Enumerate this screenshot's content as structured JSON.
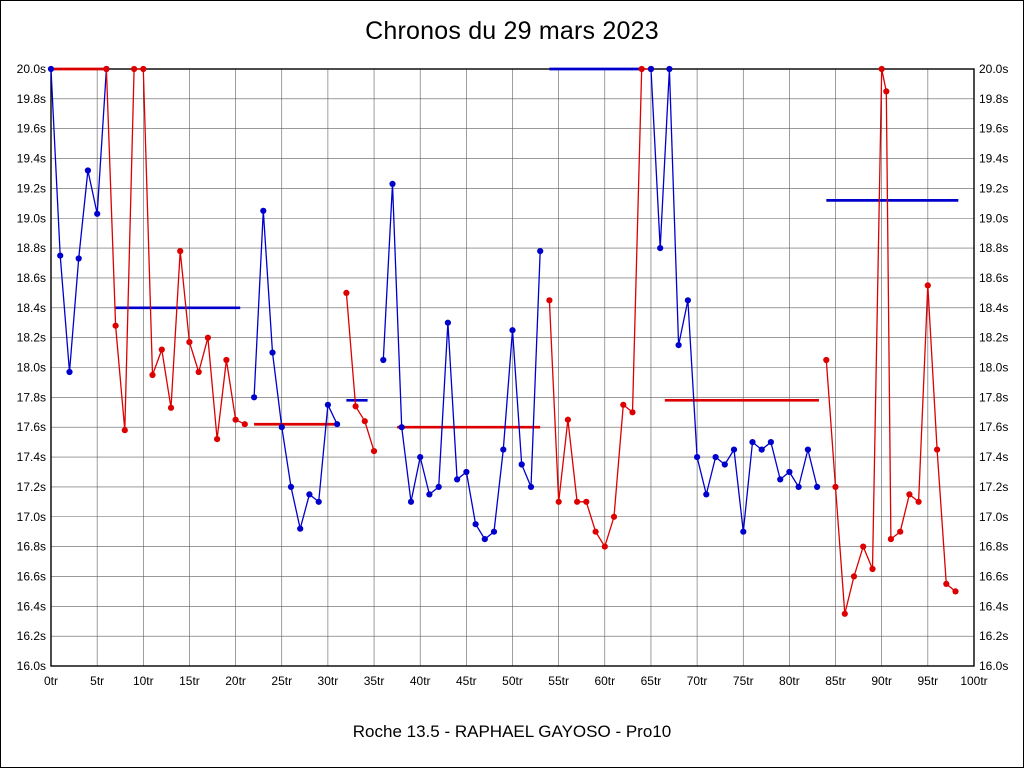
{
  "chart_data": {
    "type": "line",
    "title": "Chronos du 29 mars 2023",
    "footer": "Roche 13.5 - RAPHAEL GAYOSO - Pro10",
    "xlabel": "",
    "ylabel": "",
    "xlim": [
      0,
      100
    ],
    "ylim": [
      16.0,
      20.0
    ],
    "grid": true,
    "x_ticks": [
      "0tr",
      "5tr",
      "10tr",
      "15tr",
      "20tr",
      "25tr",
      "30tr",
      "35tr",
      "40tr",
      "45tr",
      "50tr",
      "55tr",
      "60tr",
      "65tr",
      "70tr",
      "75tr",
      "80tr",
      "85tr",
      "90tr",
      "95tr",
      "100tr"
    ],
    "x_tick_values": [
      0,
      5,
      10,
      15,
      20,
      25,
      30,
      35,
      40,
      45,
      50,
      55,
      60,
      65,
      70,
      75,
      80,
      85,
      90,
      95,
      100
    ],
    "y_ticks": [
      "20.0s",
      "19.8s",
      "19.6s",
      "19.4s",
      "19.2s",
      "19.0s",
      "18.8s",
      "18.6s",
      "18.4s",
      "18.2s",
      "18.0s",
      "17.8s",
      "17.6s",
      "17.4s",
      "17.2s",
      "17.0s",
      "16.8s",
      "16.6s",
      "16.4s",
      "16.2s",
      "16.0s"
    ],
    "y_tick_values": [
      20.0,
      19.8,
      19.6,
      19.4,
      19.2,
      19.0,
      18.8,
      18.6,
      18.4,
      18.2,
      18.0,
      17.8,
      17.6,
      17.4,
      17.2,
      17.0,
      16.8,
      16.6,
      16.4,
      16.2,
      16.0
    ],
    "colors": {
      "blue": "#0000cc",
      "red": "#dd0000",
      "axis": "#000000",
      "grid": "#5f5f5f",
      "background": "#ffffff",
      "text": "#000000"
    },
    "segments": [
      {
        "color": "blue",
        "points": [
          [
            0,
            20.0
          ],
          [
            1,
            18.75
          ],
          [
            2,
            17.97
          ],
          [
            3,
            18.73
          ],
          [
            4,
            19.32
          ],
          [
            5,
            19.03
          ],
          [
            6,
            20.0
          ]
        ]
      },
      {
        "color": "red",
        "points": [
          [
            6,
            20.0
          ],
          [
            7,
            18.28
          ],
          [
            8,
            17.58
          ],
          [
            9,
            20.0
          ],
          [
            10,
            20.0
          ],
          [
            11,
            17.95
          ],
          [
            12,
            18.12
          ],
          [
            13,
            17.73
          ],
          [
            14,
            18.78
          ],
          [
            15,
            18.17
          ],
          [
            16,
            17.97
          ],
          [
            17,
            18.2
          ],
          [
            18,
            17.52
          ],
          [
            19,
            18.05
          ],
          [
            20,
            17.65
          ],
          [
            21,
            17.62
          ]
        ]
      },
      {
        "color": "blue",
        "points": [
          [
            22,
            17.8
          ],
          [
            23,
            19.05
          ],
          [
            24,
            18.1
          ],
          [
            25,
            17.6
          ],
          [
            26,
            17.2
          ],
          [
            27,
            16.92
          ],
          [
            28,
            17.15
          ],
          [
            29,
            17.1
          ],
          [
            30,
            17.75
          ],
          [
            31,
            17.62
          ]
        ]
      },
      {
        "color": "red",
        "points": [
          [
            32,
            18.5
          ],
          [
            33,
            17.74
          ],
          [
            34,
            17.64
          ],
          [
            35,
            17.44
          ]
        ]
      },
      {
        "color": "blue",
        "points": [
          [
            36,
            18.05
          ],
          [
            37,
            19.23
          ],
          [
            38,
            17.6
          ],
          [
            39,
            17.1
          ],
          [
            40,
            17.4
          ],
          [
            41,
            17.15
          ],
          [
            42,
            17.2
          ],
          [
            43,
            18.3
          ],
          [
            44,
            17.25
          ],
          [
            45,
            17.3
          ],
          [
            46,
            16.95
          ],
          [
            47,
            16.85
          ],
          [
            48,
            16.9
          ],
          [
            49,
            17.45
          ],
          [
            50,
            18.25
          ],
          [
            51,
            17.35
          ],
          [
            52,
            17.2
          ],
          [
            53,
            18.78
          ]
        ]
      },
      {
        "color": "red",
        "points": [
          [
            54,
            18.45
          ],
          [
            55,
            17.1
          ],
          [
            56,
            17.65
          ],
          [
            57,
            17.1
          ],
          [
            58,
            17.1
          ],
          [
            59,
            16.9
          ],
          [
            60,
            16.8
          ],
          [
            61,
            17.0
          ],
          [
            62,
            17.75
          ],
          [
            63,
            17.7
          ],
          [
            64,
            20.0
          ],
          [
            65,
            20.0
          ]
        ]
      },
      {
        "color": "blue",
        "points": [
          [
            65,
            20.0
          ],
          [
            66,
            18.8
          ],
          [
            67,
            20.0
          ],
          [
            68,
            18.15
          ],
          [
            69,
            18.45
          ],
          [
            70,
            17.4
          ],
          [
            71,
            17.15
          ],
          [
            72,
            17.4
          ],
          [
            73,
            17.35
          ],
          [
            74,
            17.45
          ],
          [
            75,
            16.9
          ],
          [
            76,
            17.5
          ],
          [
            77,
            17.45
          ],
          [
            78,
            17.5
          ],
          [
            79,
            17.25
          ],
          [
            80,
            17.3
          ],
          [
            81,
            17.2
          ],
          [
            82,
            17.45
          ],
          [
            83,
            17.2
          ]
        ]
      },
      {
        "color": "red",
        "points": [
          [
            84,
            18.05
          ],
          [
            85,
            17.2
          ],
          [
            86,
            16.35
          ],
          [
            87,
            16.6
          ],
          [
            88,
            16.8
          ],
          [
            89,
            16.65
          ],
          [
            90,
            20.0
          ],
          [
            90.5,
            19.85
          ],
          [
            91,
            16.85
          ],
          [
            92,
            16.9
          ],
          [
            93,
            17.15
          ],
          [
            94,
            17.1
          ],
          [
            95,
            18.55
          ],
          [
            96,
            17.45
          ],
          [
            97,
            16.55
          ],
          [
            98,
            16.5
          ]
        ]
      }
    ],
    "average_lines": [
      {
        "color": "red",
        "y": 20.0,
        "x1": 0,
        "x2": 6
      },
      {
        "color": "blue",
        "y": 18.4,
        "x1": 7,
        "x2": 20.5
      },
      {
        "color": "red",
        "y": 17.62,
        "x1": 22,
        "x2": 30.7
      },
      {
        "color": "blue",
        "y": 17.78,
        "x1": 32,
        "x2": 34.3
      },
      {
        "color": "red",
        "y": 17.6,
        "x1": 37.5,
        "x2": 53
      },
      {
        "color": "blue",
        "y": 20.0,
        "x1": 54,
        "x2": 64
      },
      {
        "color": "red",
        "y": 17.78,
        "x1": 66.5,
        "x2": 83.2
      },
      {
        "color": "blue",
        "y": 19.12,
        "x1": 84,
        "x2": 98.3
      }
    ],
    "legend": null
  }
}
